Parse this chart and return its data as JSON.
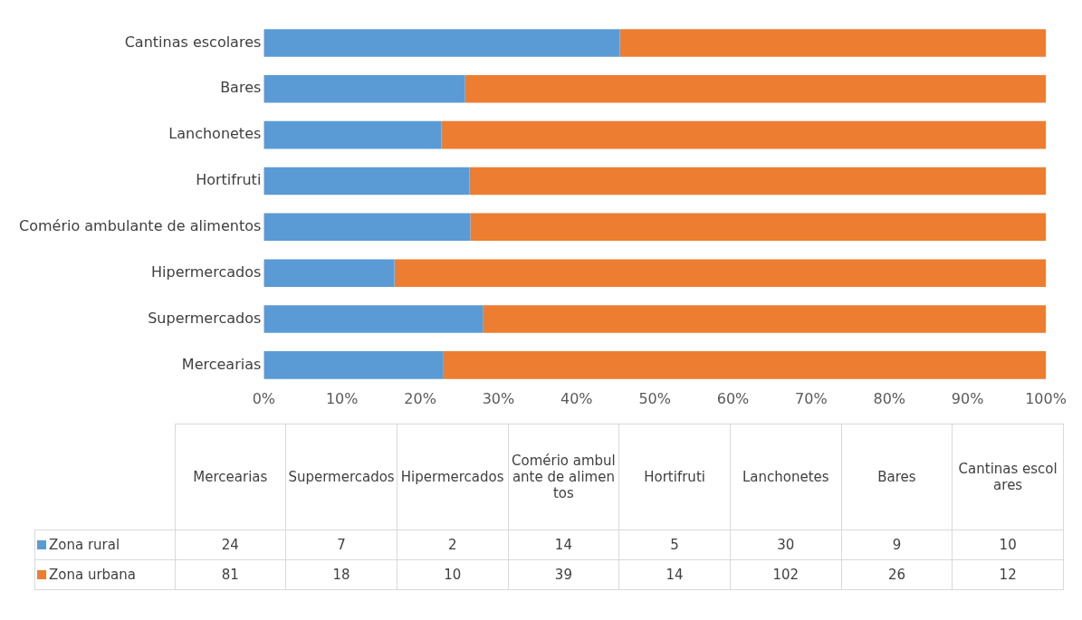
{
  "chart_data": [
    {
      "type": "bar",
      "orientation": "horizontal",
      "stacked": true,
      "categories": [
        "Cantinas escolares",
        "Bares",
        "Lanchonetes",
        "Hortifruti",
        "Comério ambulante de alimentos",
        "Hipermercados",
        "Supermercados",
        "Mercearias"
      ],
      "series": [
        {
          "color": "#5b9bd5",
          "values": [
            45.5,
            25.7,
            22.7,
            26.3,
            26.4,
            16.7,
            28,
            22.9
          ]
        },
        {
          "color": "#ed7d31",
          "values": [
            54.5,
            74.3,
            77.3,
            73.7,
            73.6,
            83.3,
            72,
            77.1
          ]
        }
      ],
      "xlim": [
        0,
        100
      ],
      "xticks": [
        {
          "value": 0,
          "label": "0%"
        },
        {
          "value": 10,
          "label": "10%"
        },
        {
          "value": 20,
          "label": "20%"
        },
        {
          "value": 30,
          "label": "30%"
        },
        {
          "value": 40,
          "label": "40%"
        },
        {
          "value": 50,
          "label": "50%"
        },
        {
          "value": 60,
          "label": "60%"
        },
        {
          "value": 70,
          "label": "70%"
        },
        {
          "value": 80,
          "label": "80%"
        },
        {
          "value": 90,
          "label": "90%"
        },
        {
          "value": 100,
          "label": "100%"
        }
      ],
      "grid": false
    },
    {
      "type": "other",
      "categories": [
        "Mercearias",
        "Supermercados",
        "Hipermercados",
        "Comério ambulante de alimentos",
        "Hortifruti",
        "Lanchonetes",
        "Bares",
        "Cantinas escolares"
      ],
      "series": [
        {
          "name": "Zona rural",
          "color": "#5b9bd5",
          "values": [
            24,
            7,
            2,
            14,
            5,
            30,
            9,
            10
          ]
        },
        {
          "name": "Zona urbana",
          "color": "#ed7d31",
          "values": [
            81,
            18,
            10,
            39,
            14,
            102,
            26,
            12
          ]
        }
      ],
      "data_labels": true,
      "legend": "left"
    }
  ]
}
